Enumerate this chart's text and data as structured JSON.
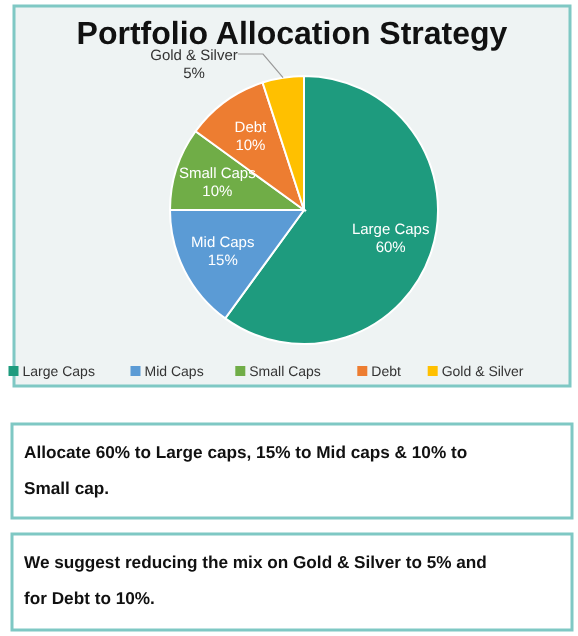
{
  "chart_data": {
    "type": "pie",
    "title": "Portfolio Allocation Strategy",
    "categories": [
      "Large Caps",
      "Mid Caps",
      "Small Caps",
      "Debt",
      "Gold & Silver"
    ],
    "values": [
      60,
      15,
      10,
      10,
      5
    ],
    "value_labels": [
      "60%",
      "15%",
      "10%",
      "10%",
      "5%"
    ],
    "colors": [
      "#1e9b7e",
      "#5b9bd5",
      "#70ad47",
      "#ed7d31",
      "#ffc000"
    ],
    "legend": "bottom",
    "annotations": [
      "Allocate 60% to Large caps, 15% to Mid caps & 10% to Small cap.",
      "We suggest reducing the mix on Gold & Silver to 5% and for Debt to 10%."
    ]
  }
}
